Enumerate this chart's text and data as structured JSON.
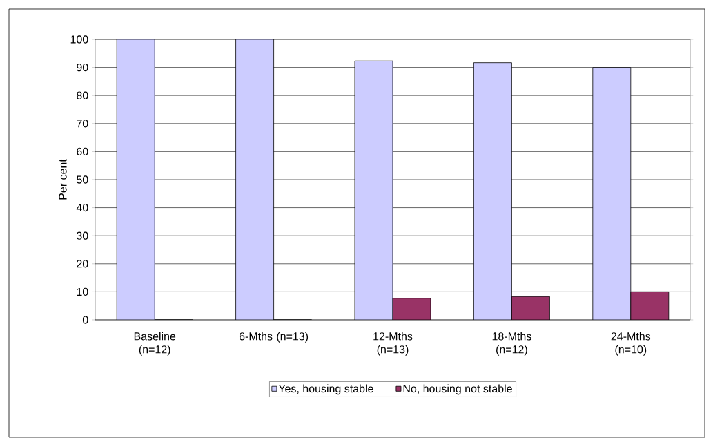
{
  "chart_data": {
    "type": "bar",
    "ylabel": "Per cent",
    "categories": [
      "Baseline (n=12)",
      "6-Mths (n=13)",
      "12-Mths (n=13)",
      "18-Mths (n=12)",
      "24-Mths (n=10)"
    ],
    "series": [
      {
        "name": "Yes, housing stable",
        "color": "#ccccff",
        "values": [
          100,
          100,
          92.3,
          91.7,
          90
        ]
      },
      {
        "name": "No, housing not stable",
        "color": "#993366",
        "values": [
          0,
          0,
          7.7,
          8.3,
          10
        ]
      }
    ],
    "ylim": [
      0,
      100
    ],
    "yticks": [
      0,
      10,
      20,
      30,
      40,
      50,
      60,
      70,
      80,
      90,
      100
    ],
    "grid": "y",
    "legend": "bottom"
  }
}
